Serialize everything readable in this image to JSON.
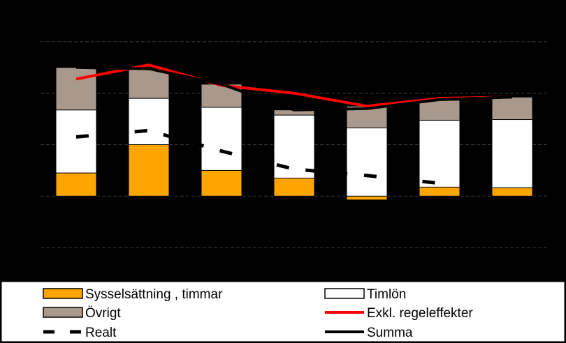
{
  "chart_data": {
    "type": "bar",
    "categories": [
      "",
      "",
      "",
      "",
      "",
      "",
      ""
    ],
    "ylim": [
      -6,
      14
    ],
    "grid": true,
    "legend_position": "bottom",
    "stacked_series": [
      {
        "name": "Sysselsättning , timmar",
        "color": "#FFA500",
        "values": [
          1.8,
          4.0,
          2.0,
          1.4,
          -0.3,
          0.7,
          0.65
        ]
      },
      {
        "name": "Timlön",
        "color": "#FFFFFF",
        "values": [
          4.9,
          3.6,
          4.9,
          4.9,
          5.3,
          5.2,
          5.3
        ]
      },
      {
        "name": "Övrigt",
        "color": "#A8998C",
        "values": [
          3.3,
          2.3,
          1.8,
          0.4,
          1.7,
          1.55,
          1.75
        ]
      }
    ],
    "line_series": [
      {
        "name": "Exkl. regeleffekter",
        "color": "#FF0000",
        "style": "solid",
        "values": [
          9.1,
          10.2,
          8.6,
          8.0,
          7.0,
          7.6,
          7.7
        ]
      },
      {
        "name": "Realt",
        "color": "#000000",
        "style": "dashed",
        "values": [
          4.6,
          5.1,
          3.5,
          2.1,
          1.6,
          1.0,
          null
        ]
      },
      {
        "name": "Summa",
        "color": "#000000",
        "style": "solid",
        "values": [
          10.0,
          9.9,
          8.7,
          6.7,
          6.8,
          7.5,
          7.7
        ]
      }
    ],
    "legend": [
      {
        "series": "Sysselsättning , timmar",
        "label": "Sysselsättning , timmar",
        "kind": "box",
        "color": "#FFA500"
      },
      {
        "series": "Timlön",
        "label": "Timlön",
        "kind": "box",
        "color": "#FFFFFF"
      },
      {
        "series": "Övrigt",
        "label": "Övrigt",
        "kind": "box",
        "color": "#A8998C"
      },
      {
        "series": "Exkl. regeleffekter",
        "label": "Exkl. regeleffekter",
        "kind": "line",
        "color": "#FF0000"
      },
      {
        "series": "Realt",
        "label": "Realt",
        "kind": "dash",
        "color": "#000000"
      },
      {
        "series": "Summa",
        "label": "Summa",
        "kind": "line",
        "color": "#000000"
      }
    ]
  }
}
